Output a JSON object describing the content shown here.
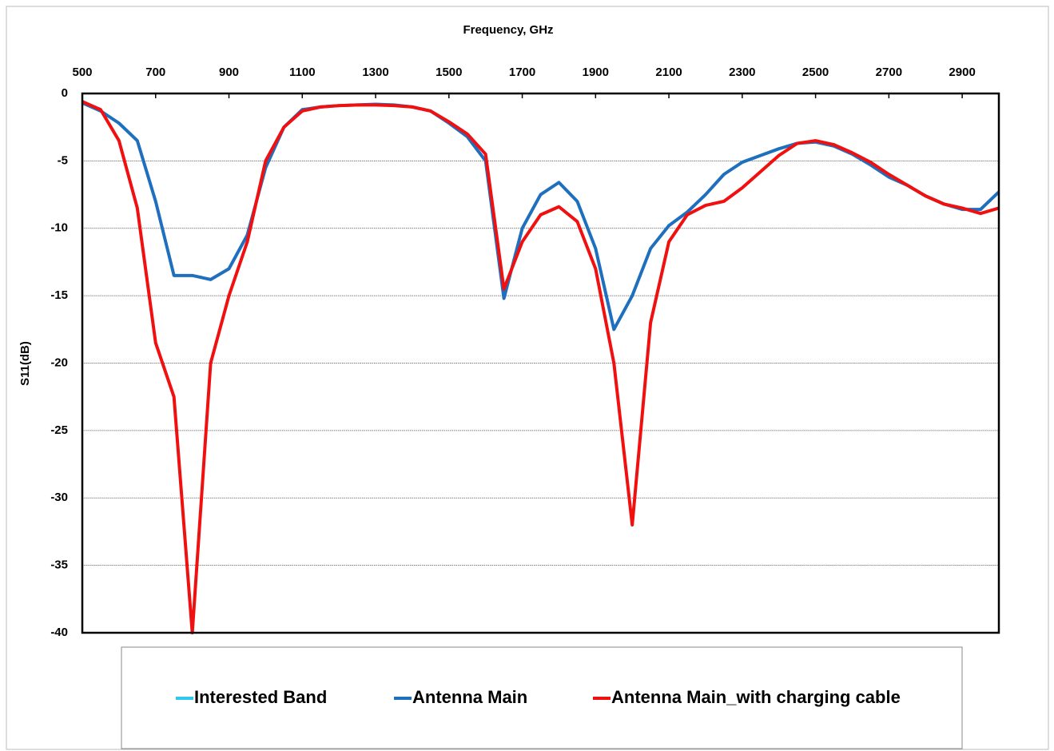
{
  "chart_data": {
    "type": "line",
    "x_label": "Frequency, GHz",
    "y_label": "S11(dB)",
    "xlim": [
      500,
      3000
    ],
    "xticks": [
      500,
      700,
      900,
      1100,
      1300,
      1500,
      1700,
      1900,
      2100,
      2300,
      2500,
      2700,
      2900
    ],
    "ylim": [
      -40,
      0
    ],
    "yticks": [
      0,
      -5,
      -10,
      -15,
      -20,
      -25,
      -30,
      -35,
      -40
    ],
    "grid": true,
    "legend": "bottom",
    "x": [
      500,
      550,
      600,
      650,
      700,
      750,
      800,
      850,
      900,
      950,
      1000,
      1050,
      1100,
      1150,
      1200,
      1250,
      1300,
      1350,
      1400,
      1450,
      1500,
      1550,
      1600,
      1650,
      1700,
      1750,
      1800,
      1850,
      1900,
      1950,
      2000,
      2050,
      2100,
      2150,
      2200,
      2250,
      2300,
      2350,
      2400,
      2450,
      2500,
      2550,
      2600,
      2650,
      2700,
      2750,
      2800,
      2850,
      2900,
      2950,
      3000
    ],
    "series": [
      {
        "name": "Interested Band",
        "color": "#2ec8f0",
        "values": [
          null,
          null,
          null,
          null,
          null,
          null,
          null,
          null,
          null,
          null,
          null,
          null,
          null,
          null,
          null,
          null,
          null,
          null,
          null,
          null,
          null,
          null,
          null,
          null,
          null,
          null,
          null,
          null,
          null,
          null,
          null,
          null,
          null,
          null,
          null,
          null,
          null,
          null,
          null,
          null,
          null,
          null,
          null,
          null,
          null,
          null,
          null,
          null,
          null,
          null,
          null
        ]
      },
      {
        "name": "Antenna Main",
        "color": "#1f6fbf",
        "values": [
          -0.7,
          -1.3,
          -2.2,
          -3.5,
          -8,
          -13.5,
          -13.5,
          -13.8,
          -13,
          -10.5,
          -5.5,
          -2.5,
          -1.2,
          -1.0,
          -0.9,
          -0.85,
          -0.8,
          -0.85,
          -1.0,
          -1.3,
          -2.2,
          -3.2,
          -5,
          -15.2,
          -10,
          -7.5,
          -6.6,
          -8,
          -11.5,
          -17.5,
          -15,
          -11.5,
          -9.8,
          -8.8,
          -7.5,
          -6,
          -5.1,
          -4.6,
          -4.1,
          -3.7,
          -3.6,
          -3.9,
          -4.5,
          -5.3,
          -6.2,
          -6.8,
          -7.6,
          -8.2,
          -8.6,
          -8.6,
          -7.3
        ]
      },
      {
        "name": "Antenna Main_with charging cable",
        "color": "#f01010",
        "values": [
          -0.6,
          -1.2,
          -3.5,
          -8.5,
          -18.5,
          -22.5,
          -40,
          -20,
          -15,
          -11,
          -5,
          -2.5,
          -1.3,
          -1.0,
          -0.9,
          -0.85,
          -0.85,
          -0.9,
          -1.0,
          -1.3,
          -2.1,
          -3,
          -4.5,
          -14.5,
          -11,
          -9,
          -8.4,
          -9.5,
          -13,
          -20,
          -32,
          -17,
          -11,
          -9,
          -8.3,
          -8,
          -7,
          -5.8,
          -4.6,
          -3.7,
          -3.5,
          -3.8,
          -4.4,
          -5.1,
          -6,
          -6.8,
          -7.6,
          -8.2,
          -8.5,
          -8.9,
          -8.5
        ]
      }
    ]
  }
}
